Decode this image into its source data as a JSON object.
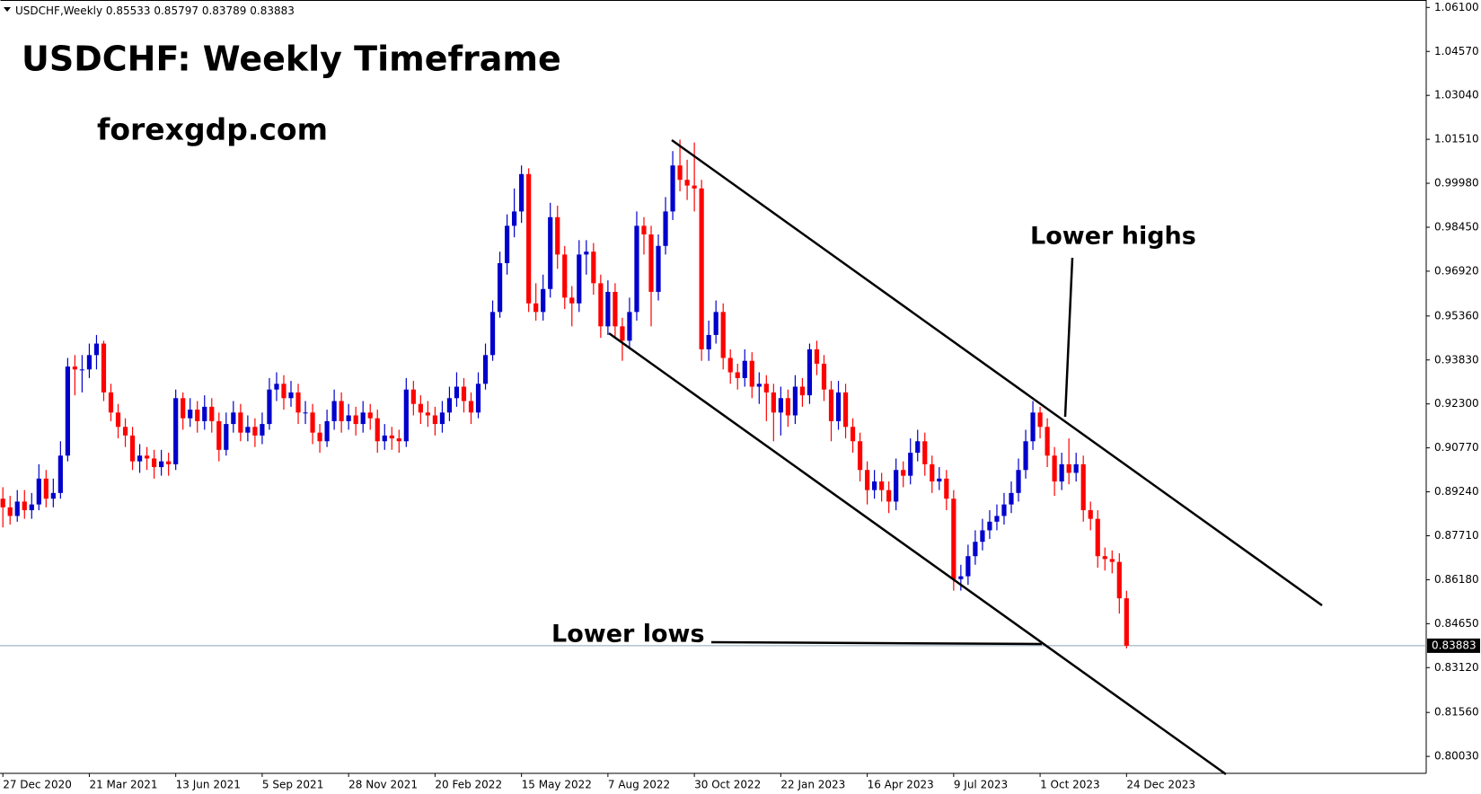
{
  "chart_data": {
    "type": "candlestick",
    "symbol": "USDCHF,Weekly",
    "title": "USDCHF: Weekly Timeframe",
    "subtitle": "forexgdp.com",
    "annotations": [
      "Lower highs",
      "Lower lows"
    ],
    "up_color": "#0000cc",
    "down_color": "#ff0000",
    "ylim": [
      0.7944,
      1.0636
    ],
    "yticks": [
      {
        "value": 1.061,
        "label": "1.06100"
      },
      {
        "value": 1.0457,
        "label": "1.04570"
      },
      {
        "value": 1.0304,
        "label": "1.03040"
      },
      {
        "value": 1.0151,
        "label": "1.01510"
      },
      {
        "value": 0.9998,
        "label": "0.99980"
      },
      {
        "value": 0.9845,
        "label": "0.98450"
      },
      {
        "value": 0.9692,
        "label": "0.96920"
      },
      {
        "value": 0.9536,
        "label": "0.95360"
      },
      {
        "value": 0.9383,
        "label": "0.93830"
      },
      {
        "value": 0.923,
        "label": "0.92300"
      },
      {
        "value": 0.9077,
        "label": "0.90770"
      },
      {
        "value": 0.8924,
        "label": "0.89240"
      },
      {
        "value": 0.8771,
        "label": "0.87710"
      },
      {
        "value": 0.8618,
        "label": "0.86180"
      },
      {
        "value": 0.8465,
        "label": "0.84650"
      },
      {
        "value": 0.8312,
        "label": "0.83120"
      },
      {
        "value": 0.8156,
        "label": "0.81560"
      },
      {
        "value": 0.8003,
        "label": "0.80030"
      }
    ],
    "categories": [
      "27 Dec 2020",
      null,
      null,
      null,
      null,
      null,
      null,
      null,
      null,
      null,
      null,
      null,
      "21 Mar 2021",
      null,
      null,
      null,
      null,
      null,
      null,
      null,
      null,
      null,
      null,
      null,
      "13 Jun 2021",
      null,
      null,
      null,
      null,
      null,
      null,
      null,
      null,
      null,
      null,
      null,
      "5 Sep 2021",
      null,
      null,
      null,
      null,
      null,
      null,
      null,
      null,
      null,
      null,
      null,
      "28 Nov 2021",
      null,
      null,
      null,
      null,
      null,
      null,
      null,
      null,
      null,
      null,
      null,
      "20 Feb 2022",
      null,
      null,
      null,
      null,
      null,
      null,
      null,
      null,
      null,
      null,
      null,
      "15 May 2022",
      null,
      null,
      null,
      null,
      null,
      null,
      null,
      null,
      null,
      null,
      null,
      "7 Aug 2022",
      null,
      null,
      null,
      null,
      null,
      null,
      null,
      null,
      null,
      null,
      null,
      "30 Oct 2022",
      null,
      null,
      null,
      null,
      null,
      null,
      null,
      null,
      null,
      null,
      null,
      "22 Jan 2023",
      null,
      null,
      null,
      null,
      null,
      null,
      null,
      null,
      null,
      null,
      null,
      "16 Apr 2023",
      null,
      null,
      null,
      null,
      null,
      null,
      null,
      null,
      null,
      null,
      null,
      "9 Jul 2023",
      null,
      null,
      null,
      null,
      null,
      null,
      null,
      null,
      null,
      null,
      null,
      "1 Oct 2023",
      null,
      null,
      null,
      null,
      null,
      null,
      null,
      null,
      null,
      null,
      null,
      "24 Dec 2023"
    ],
    "candles": [
      [
        0.89,
        0.894,
        0.88,
        0.887
      ],
      [
        0.887,
        0.891,
        0.881,
        0.884
      ],
      [
        0.884,
        0.893,
        0.882,
        0.889
      ],
      [
        0.889,
        0.893,
        0.883,
        0.886
      ],
      [
        0.886,
        0.892,
        0.883,
        0.888
      ],
      [
        0.888,
        0.902,
        0.886,
        0.897
      ],
      [
        0.897,
        0.9,
        0.887,
        0.89
      ],
      [
        0.89,
        0.897,
        0.887,
        0.892
      ],
      [
        0.892,
        0.91,
        0.89,
        0.905
      ],
      [
        0.905,
        0.939,
        0.903,
        0.936
      ],
      [
        0.936,
        0.94,
        0.926,
        0.935
      ],
      [
        0.935,
        0.94,
        0.927,
        0.935
      ],
      [
        0.935,
        0.944,
        0.932,
        0.94
      ],
      [
        0.94,
        0.947,
        0.935,
        0.944
      ],
      [
        0.944,
        0.945,
        0.924,
        0.927
      ],
      [
        0.927,
        0.93,
        0.917,
        0.92
      ],
      [
        0.92,
        0.923,
        0.911,
        0.915
      ],
      [
        0.915,
        0.918,
        0.908,
        0.912
      ],
      [
        0.912,
        0.915,
        0.9,
        0.903
      ],
      [
        0.903,
        0.909,
        0.899,
        0.905
      ],
      [
        0.905,
        0.908,
        0.9,
        0.904
      ],
      [
        0.904,
        0.907,
        0.897,
        0.901
      ],
      [
        0.901,
        0.907,
        0.898,
        0.903
      ],
      [
        0.903,
        0.906,
        0.898,
        0.902
      ],
      [
        0.902,
        0.928,
        0.9,
        0.925
      ],
      [
        0.925,
        0.927,
        0.914,
        0.918
      ],
      [
        0.918,
        0.925,
        0.915,
        0.921
      ],
      [
        0.921,
        0.924,
        0.913,
        0.917
      ],
      [
        0.917,
        0.926,
        0.914,
        0.922
      ],
      [
        0.922,
        0.925,
        0.913,
        0.917
      ],
      [
        0.917,
        0.92,
        0.903,
        0.907
      ],
      [
        0.907,
        0.92,
        0.905,
        0.916
      ],
      [
        0.916,
        0.924,
        0.913,
        0.92
      ],
      [
        0.92,
        0.923,
        0.91,
        0.913
      ],
      [
        0.913,
        0.919,
        0.91,
        0.915
      ],
      [
        0.915,
        0.918,
        0.908,
        0.912
      ],
      [
        0.912,
        0.92,
        0.909,
        0.916
      ],
      [
        0.916,
        0.932,
        0.914,
        0.928
      ],
      [
        0.928,
        0.934,
        0.924,
        0.93
      ],
      [
        0.93,
        0.933,
        0.921,
        0.925
      ],
      [
        0.925,
        0.931,
        0.922,
        0.927
      ],
      [
        0.927,
        0.93,
        0.916,
        0.92
      ],
      [
        0.92,
        0.924,
        0.916,
        0.92
      ],
      [
        0.92,
        0.923,
        0.909,
        0.913
      ],
      [
        0.913,
        0.916,
        0.906,
        0.91
      ],
      [
        0.91,
        0.921,
        0.908,
        0.917
      ],
      [
        0.917,
        0.928,
        0.914,
        0.924
      ],
      [
        0.924,
        0.927,
        0.913,
        0.917
      ],
      [
        0.917,
        0.923,
        0.914,
        0.919
      ],
      [
        0.919,
        0.922,
        0.912,
        0.916
      ],
      [
        0.916,
        0.924,
        0.913,
        0.92
      ],
      [
        0.92,
        0.923,
        0.914,
        0.918
      ],
      [
        0.918,
        0.921,
        0.906,
        0.91
      ],
      [
        0.91,
        0.916,
        0.907,
        0.912
      ],
      [
        0.912,
        0.915,
        0.907,
        0.911
      ],
      [
        0.911,
        0.914,
        0.906,
        0.91
      ],
      [
        0.91,
        0.932,
        0.908,
        0.928
      ],
      [
        0.928,
        0.931,
        0.919,
        0.923
      ],
      [
        0.923,
        0.926,
        0.916,
        0.92
      ],
      [
        0.92,
        0.924,
        0.915,
        0.919
      ],
      [
        0.919,
        0.922,
        0.912,
        0.916
      ],
      [
        0.916,
        0.924,
        0.913,
        0.92
      ],
      [
        0.92,
        0.929,
        0.917,
        0.925
      ],
      [
        0.925,
        0.934,
        0.922,
        0.929
      ],
      [
        0.929,
        0.932,
        0.92,
        0.924
      ],
      [
        0.924,
        0.927,
        0.916,
        0.92
      ],
      [
        0.92,
        0.934,
        0.918,
        0.93
      ],
      [
        0.93,
        0.944,
        0.928,
        0.94
      ],
      [
        0.94,
        0.959,
        0.938,
        0.955
      ],
      [
        0.955,
        0.976,
        0.953,
        0.972
      ],
      [
        0.972,
        0.989,
        0.968,
        0.985
      ],
      [
        0.985,
        0.998,
        0.981,
        0.99
      ],
      [
        0.99,
        1.006,
        0.986,
        1.003
      ],
      [
        1.003,
        1.005,
        0.955,
        0.958
      ],
      [
        0.958,
        0.965,
        0.952,
        0.955
      ],
      [
        0.955,
        0.968,
        0.952,
        0.963
      ],
      [
        0.963,
        0.993,
        0.96,
        0.988
      ],
      [
        0.988,
        0.992,
        0.97,
        0.975
      ],
      [
        0.975,
        0.978,
        0.956,
        0.96
      ],
      [
        0.96,
        0.964,
        0.95,
        0.958
      ],
      [
        0.958,
        0.98,
        0.955,
        0.975
      ],
      [
        0.975,
        0.98,
        0.968,
        0.976
      ],
      [
        0.976,
        0.979,
        0.961,
        0.965
      ],
      [
        0.965,
        0.968,
        0.946,
        0.95
      ],
      [
        0.95,
        0.966,
        0.947,
        0.962
      ],
      [
        0.962,
        0.965,
        0.946,
        0.95
      ],
      [
        0.95,
        0.953,
        0.938,
        0.945
      ],
      [
        0.945,
        0.96,
        0.942,
        0.955
      ],
      [
        0.955,
        0.99,
        0.952,
        0.985
      ],
      [
        0.985,
        0.988,
        0.975,
        0.982
      ],
      [
        0.982,
        0.985,
        0.95,
        0.962
      ],
      [
        0.962,
        0.982,
        0.959,
        0.978
      ],
      [
        0.978,
        0.995,
        0.975,
        0.99
      ],
      [
        0.99,
        1.011,
        0.987,
        1.006
      ],
      [
        1.006,
        1.015,
        0.997,
        1.001
      ],
      [
        1.001,
        1.008,
        0.994,
        0.999
      ],
      [
        0.999,
        1.014,
        0.99,
        0.998
      ],
      [
        0.998,
        1.001,
        0.938,
        0.942
      ],
      [
        0.942,
        0.952,
        0.938,
        0.947
      ],
      [
        0.947,
        0.959,
        0.944,
        0.955
      ],
      [
        0.955,
        0.958,
        0.935,
        0.939
      ],
      [
        0.939,
        0.942,
        0.93,
        0.934
      ],
      [
        0.934,
        0.937,
        0.928,
        0.932
      ],
      [
        0.932,
        0.942,
        0.929,
        0.938
      ],
      [
        0.938,
        0.941,
        0.925,
        0.929
      ],
      [
        0.929,
        0.934,
        0.923,
        0.93
      ],
      [
        0.93,
        0.933,
        0.917,
        0.927
      ],
      [
        0.927,
        0.93,
        0.91,
        0.92
      ],
      [
        0.92,
        0.929,
        0.912,
        0.925
      ],
      [
        0.925,
        0.928,
        0.915,
        0.919
      ],
      [
        0.919,
        0.933,
        0.916,
        0.929
      ],
      [
        0.929,
        0.932,
        0.922,
        0.926
      ],
      [
        0.926,
        0.944,
        0.923,
        0.942
      ],
      [
        0.942,
        0.945,
        0.933,
        0.937
      ],
      [
        0.937,
        0.94,
        0.924,
        0.928
      ],
      [
        0.928,
        0.931,
        0.91,
        0.917
      ],
      [
        0.917,
        0.931,
        0.914,
        0.927
      ],
      [
        0.927,
        0.93,
        0.911,
        0.915
      ],
      [
        0.915,
        0.918,
        0.906,
        0.91
      ],
      [
        0.91,
        0.913,
        0.896,
        0.9
      ],
      [
        0.9,
        0.903,
        0.888,
        0.893
      ],
      [
        0.893,
        0.9,
        0.89,
        0.896
      ],
      [
        0.896,
        0.899,
        0.889,
        0.893
      ],
      [
        0.893,
        0.896,
        0.885,
        0.889
      ],
      [
        0.889,
        0.904,
        0.886,
        0.9
      ],
      [
        0.9,
        0.903,
        0.894,
        0.898
      ],
      [
        0.898,
        0.911,
        0.895,
        0.906
      ],
      [
        0.906,
        0.914,
        0.903,
        0.91
      ],
      [
        0.91,
        0.913,
        0.898,
        0.902
      ],
      [
        0.902,
        0.905,
        0.892,
        0.896
      ],
      [
        0.896,
        0.901,
        0.893,
        0.897
      ],
      [
        0.897,
        0.9,
        0.886,
        0.89
      ],
      [
        0.89,
        0.893,
        0.858,
        0.862
      ],
      [
        0.862,
        0.867,
        0.858,
        0.863
      ],
      [
        0.863,
        0.874,
        0.86,
        0.87
      ],
      [
        0.87,
        0.879,
        0.867,
        0.875
      ],
      [
        0.875,
        0.883,
        0.872,
        0.879
      ],
      [
        0.879,
        0.886,
        0.876,
        0.882
      ],
      [
        0.882,
        0.888,
        0.879,
        0.884
      ],
      [
        0.884,
        0.892,
        0.881,
        0.888
      ],
      [
        0.888,
        0.896,
        0.885,
        0.892
      ],
      [
        0.892,
        0.904,
        0.889,
        0.9
      ],
      [
        0.9,
        0.914,
        0.897,
        0.91
      ],
      [
        0.91,
        0.924,
        0.907,
        0.92
      ],
      [
        0.92,
        0.922,
        0.911,
        0.915
      ],
      [
        0.915,
        0.918,
        0.901,
        0.905
      ],
      [
        0.905,
        0.908,
        0.891,
        0.896
      ],
      [
        0.896,
        0.906,
        0.893,
        0.902
      ],
      [
        0.902,
        0.911,
        0.895,
        0.899
      ],
      [
        0.899,
        0.906,
        0.896,
        0.902
      ],
      [
        0.902,
        0.905,
        0.882,
        0.886
      ],
      [
        0.886,
        0.889,
        0.879,
        0.883
      ],
      [
        0.883,
        0.886,
        0.866,
        0.87
      ],
      [
        0.87,
        0.873,
        0.865,
        0.869
      ],
      [
        0.869,
        0.872,
        0.864,
        0.868
      ],
      [
        0.868,
        0.871,
        0.85,
        0.85533
      ],
      [
        0.85533,
        0.85797,
        0.83789,
        0.83883
      ]
    ]
  }
}
